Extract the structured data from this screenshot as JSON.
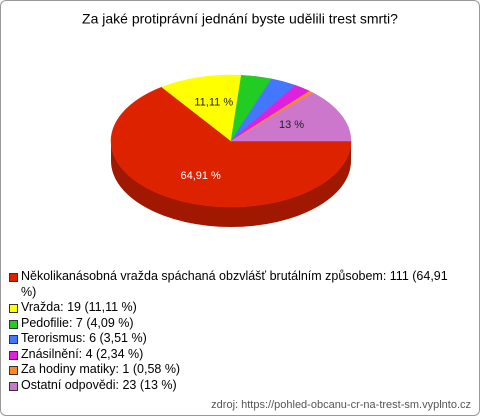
{
  "chart_data": {
    "type": "pie",
    "title": "Za jaké protiprávní jednání byste udělili trest smrti?",
    "categories": [
      "Několikanásobná vražda spáchaná obzvlášť brutálním způsobem",
      "Vražda",
      "Pedofilie",
      "Terorismus",
      "Znásilnění",
      "Za hodiny matiky",
      "Ostatní odpovědi"
    ],
    "values": [
      64.91,
      11.11,
      4.09,
      3.51,
      2.34,
      0.58,
      13
    ],
    "value_labels": [
      "64,91 %",
      "11,11 %",
      null,
      null,
      null,
      null,
      "13 %"
    ],
    "legend_labels": [
      "Několikanásobná vražda spáchaná obzvlášť brutálním způsobem: 111 (64,91 %)",
      "Vražda: 19 (11,11 %)",
      "Pedofilie: 7 (4,09 %)",
      "Terorismus: 6 (3,51 %)",
      "Znásilnění: 4 (2,34 %)",
      "Za hodiny matiky: 1 (0,58 %)",
      "Ostatní odpovědi: 23 (13 %)"
    ],
    "colors": [
      "#dd2200",
      "#ffff00",
      "#22cc22",
      "#4477ff",
      "#dd22dd",
      "#ff8822",
      "#cc77cc"
    ],
    "side_colors": [
      "#a01800",
      "#b8b800",
      "#188c18",
      "#3050b0",
      "#a018a0",
      "#b86018",
      "#905490"
    ],
    "source": "zdroj: https://pohled-obcanu-cr-na-trest-sm.vyplnto.cz"
  }
}
